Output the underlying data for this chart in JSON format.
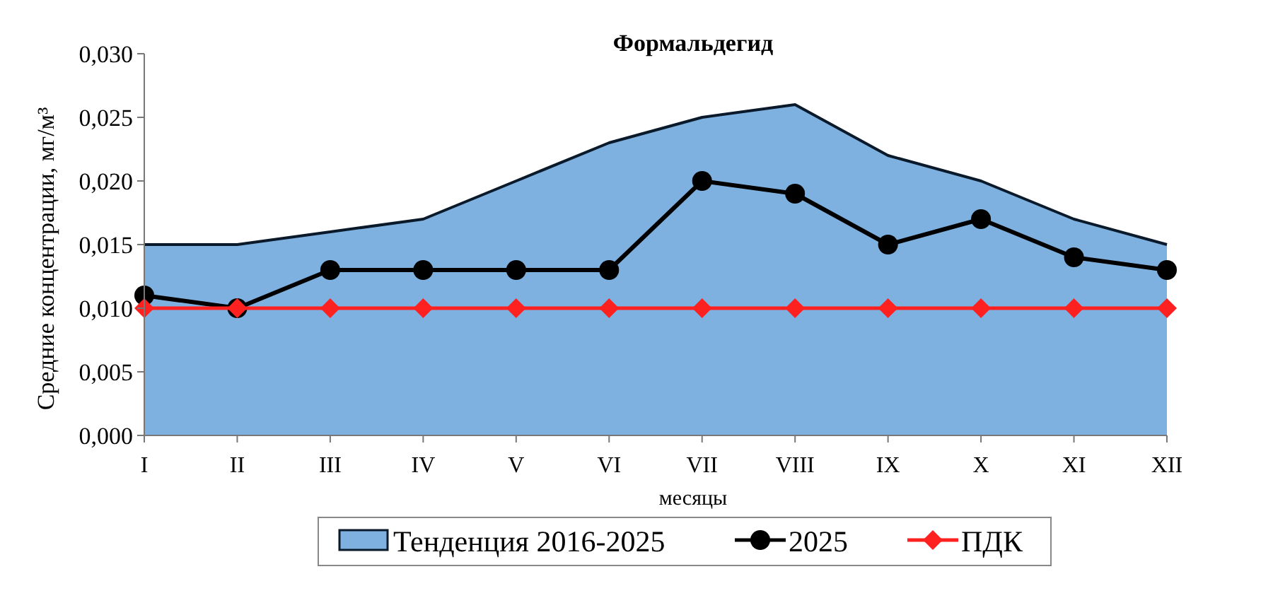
{
  "chart_data": {
    "type": "line",
    "title": "Формальдегид",
    "xlabel": "месяцы",
    "ylabel": "Средние концентрации, мг/м³",
    "categories": [
      "I",
      "II",
      "III",
      "IV",
      "V",
      "VI",
      "VII",
      "VIII",
      "IX",
      "X",
      "XI",
      "XII"
    ],
    "ylim": [
      0,
      0.03
    ],
    "yticks": [
      {
        "value": 0,
        "label": "0,000"
      },
      {
        "value": 0.005,
        "label": "0,005"
      },
      {
        "value": 0.01,
        "label": "0,010"
      },
      {
        "value": 0.015,
        "label": "0,015"
      },
      {
        "value": 0.02,
        "label": "0,020"
      },
      {
        "value": 0.025,
        "label": "0,025"
      },
      {
        "value": 0.03,
        "label": "0,030"
      }
    ],
    "grid": false,
    "legend": "bottom",
    "series": [
      {
        "name": "Тенденция 2016-2025",
        "type": "area",
        "color": "#7eb1e0",
        "marker": "none",
        "values": [
          0.015,
          0.015,
          0.016,
          0.017,
          0.02,
          0.023,
          0.025,
          0.026,
          0.022,
          0.02,
          0.017,
          0.015
        ]
      },
      {
        "name": "2025",
        "color": "#000000",
        "marker": "circle",
        "values": [
          0.011,
          0.01,
          0.013,
          0.013,
          0.013,
          0.013,
          0.02,
          0.019,
          0.015,
          0.017,
          0.014,
          0.013
        ]
      },
      {
        "name": "ПДК",
        "color": "#ff2020",
        "marker": "diamond",
        "values": [
          0.01,
          0.01,
          0.01,
          0.01,
          0.01,
          0.01,
          0.01,
          0.01,
          0.01,
          0.01,
          0.01,
          0.01
        ]
      }
    ]
  }
}
